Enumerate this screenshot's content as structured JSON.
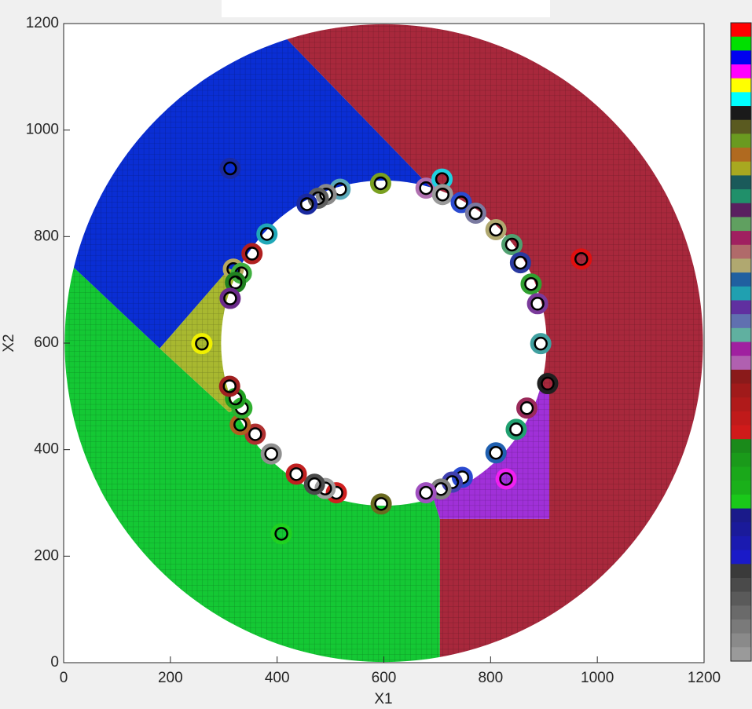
{
  "chart_data": {
    "type": "scatter",
    "xlabel": "X1",
    "ylabel": "X2",
    "xlim": [
      0,
      1200
    ],
    "ylim": [
      0,
      1200
    ],
    "xticks": [
      0,
      200,
      400,
      600,
      800,
      1000,
      1200
    ],
    "yticks": [
      0,
      200,
      400,
      600,
      800,
      1000,
      1200
    ],
    "ring": {
      "center": [
        600,
        600
      ],
      "outer": 598,
      "inner": 305
    },
    "regions": [
      {
        "color": "#14c834",
        "points": [
          [
            0,
            0
          ],
          [
            705,
            0
          ],
          [
            705,
            270
          ],
          [
            600,
            600
          ],
          [
            310,
            470
          ],
          [
            180,
            590
          ],
          [
            0,
            760
          ]
        ]
      },
      {
        "color": "#0a2ed4",
        "points": [
          [
            0,
            760
          ],
          [
            180,
            590
          ],
          [
            310,
            740
          ],
          [
            600,
            600
          ],
          [
            700,
            880
          ],
          [
            390,
            1200
          ],
          [
            0,
            1200
          ]
        ]
      },
      {
        "color": "#a8b830",
        "points": [
          [
            180,
            590
          ],
          [
            310,
            740
          ],
          [
            600,
            600
          ],
          [
            310,
            470
          ]
        ]
      },
      {
        "color": "#a8283c",
        "points": [
          [
            390,
            1200
          ],
          [
            1200,
            1200
          ],
          [
            1200,
            0
          ],
          [
            705,
            0
          ],
          [
            705,
            270
          ],
          [
            910,
            270
          ],
          [
            910,
            510
          ],
          [
            600,
            600
          ],
          [
            700,
            880
          ]
        ]
      },
      {
        "color": "#a030d8",
        "points": [
          [
            600,
            600
          ],
          [
            705,
            270
          ],
          [
            910,
            270
          ],
          [
            910,
            510
          ]
        ]
      }
    ],
    "x": [
      312,
      970,
      259,
      408,
      829,
      907,
      594,
      518,
      492,
      477,
      456,
      381,
      353,
      318,
      333,
      322,
      312,
      679,
      709,
      710,
      745,
      772,
      810,
      840,
      856,
      876,
      888,
      894,
      868,
      848,
      810,
      747,
      728,
      707,
      679,
      595,
      511,
      490,
      470,
      436,
      389,
      359,
      331,
      334,
      322,
      311
    ],
    "y": [
      928,
      758,
      599,
      242,
      345,
      524,
      900,
      889,
      879,
      872,
      861,
      805,
      768,
      739,
      731,
      714,
      684,
      891,
      908,
      879,
      864,
      844,
      813,
      785,
      751,
      711,
      674,
      599,
      478,
      438,
      394,
      348,
      339,
      326,
      319,
      298,
      319,
      327,
      335,
      354,
      392,
      429,
      447,
      478,
      496,
      519
    ],
    "colors": [
      "#1a2aa0",
      "#e01010",
      "#f0f000",
      "#20d020",
      "#f020f0",
      "#202020",
      "#7aa020",
      "#5aa8b8",
      "#8a8a8a",
      "#606060",
      "#1a2aa0",
      "#20a8b8",
      "#b02020",
      "#b8a860",
      "#40b040",
      "#208020",
      "#6a2a8a",
      "#b070b0",
      "#20d0e0",
      "#9a9a9a",
      "#2a4ad0",
      "#7a7aa0",
      "#b0a870",
      "#50a070",
      "#2a3aa0",
      "#30a030",
      "#7a3a9a",
      "#40a0a0",
      "#9a2a5a",
      "#20a070",
      "#2060b0",
      "#2a4ad0",
      "#4040b0",
      "#808080",
      "#a050c0",
      "#6a6a20",
      "#d02020",
      "#a0a0a0",
      "#4a4a4a",
      "#c02020",
      "#909090",
      "#b03030",
      "#b06020",
      "#30b030",
      "#20a020",
      "#a02020"
    ],
    "colorbar": [
      "#ff0000",
      "#00e000",
      "#0000f0",
      "#ff00ff",
      "#ffff00",
      "#00ffff",
      "#1a1a1a",
      "#5a5a20",
      "#6a9a20",
      "#b06a20",
      "#a8a820",
      "#1a5a5a",
      "#20906a",
      "#5a2060",
      "#60a060",
      "#a02060",
      "#b06a6a",
      "#b0a870",
      "#2060a0",
      "#20a0b0",
      "#6030a0",
      "#6070b0",
      "#60b0a0",
      "#a020a0",
      "#b060b0",
      "#8a1a1a",
      "#a01a1a",
      "#b01a1a",
      "#c01a1a",
      "#d01a1a",
      "#1a8a1a",
      "#1a9a1a",
      "#1aa81a",
      "#1ab01a",
      "#1ac81a",
      "#1a1a8a",
      "#1a1a9a",
      "#1a1ab0",
      "#1a1ac8",
      "#3a3a3a",
      "#4a4a4a",
      "#5a5a5a",
      "#6a6a6a",
      "#7a7a7a",
      "#8a8a8a",
      "#9a9a9a"
    ]
  }
}
